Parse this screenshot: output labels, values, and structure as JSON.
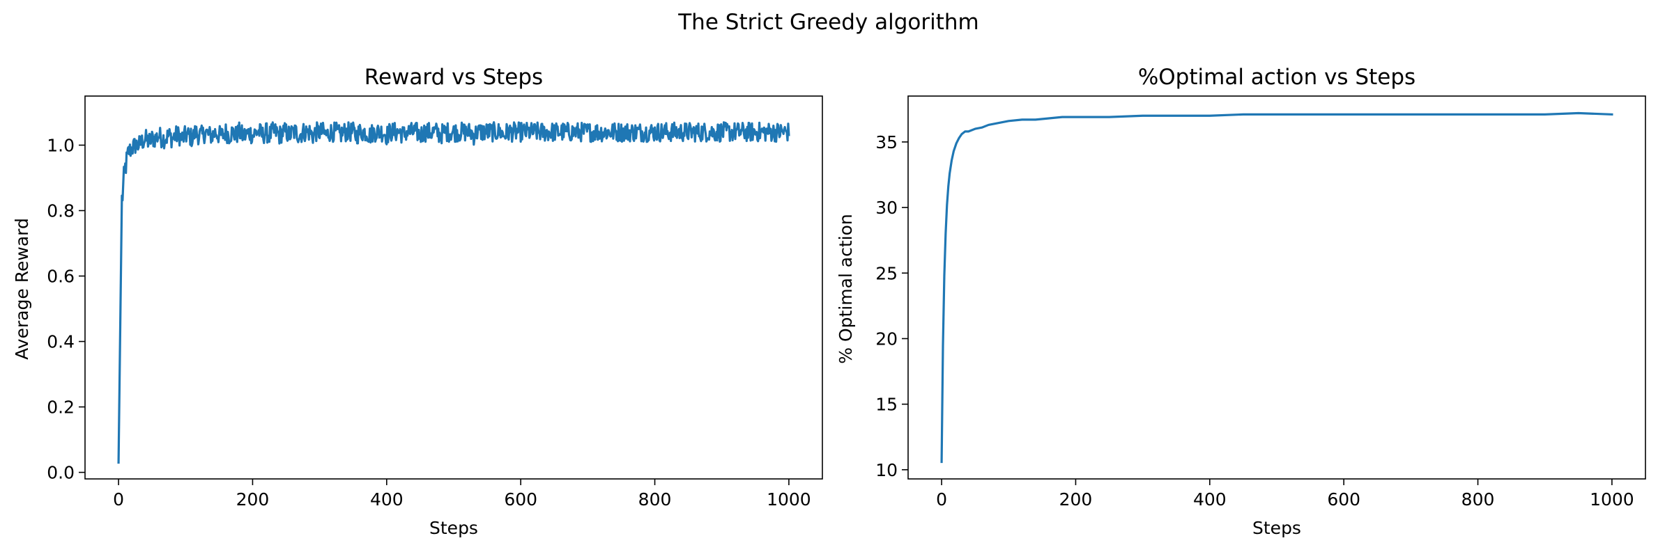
{
  "figure": {
    "suptitle": "The Strict Greedy algorithm"
  },
  "chart_data": [
    {
      "type": "line",
      "title": "Reward vs Steps",
      "xlabel": "Steps",
      "ylabel": "Average Reward",
      "xlim": [
        -50,
        1050
      ],
      "ylim": [
        -0.02,
        1.15
      ],
      "xticks": [
        0,
        200,
        400,
        600,
        800,
        1000
      ],
      "xtick_labels": [
        "0",
        "200",
        "400",
        "600",
        "800",
        "1000"
      ],
      "yticks": [
        0.0,
        0.2,
        0.4,
        0.6,
        0.8,
        1.0
      ],
      "ytick_labels": [
        "0.0",
        "0.2",
        "0.4",
        "0.6",
        "0.8",
        "1.0"
      ],
      "grid": false,
      "color": "#1f77b4",
      "series": [
        {
          "x_start": 0,
          "x_step": 5,
          "values": [
            0.03,
            0.83,
            0.93,
            0.98,
            0.99,
            1.0,
            1.0,
            1.01,
            1.02,
            1.01,
            1.02,
            1.02,
            1.03,
            1.02,
            1.02,
            1.03,
            1.02,
            1.03,
            1.03,
            1.02,
            1.03,
            1.03,
            1.02,
            1.04,
            1.03,
            1.03,
            1.04,
            1.03,
            1.03,
            1.04,
            1.03,
            1.03,
            1.04,
            1.03,
            1.04,
            1.03,
            1.04,
            1.03,
            1.03,
            1.04,
            1.03,
            1.04,
            1.04,
            1.03,
            1.04,
            1.03,
            1.04,
            1.04,
            1.03,
            1.04,
            1.04,
            1.03,
            1.04,
            1.04,
            1.03,
            1.04,
            1.04,
            1.04,
            1.03,
            1.04,
            1.04,
            1.04,
            1.03,
            1.04,
            1.04,
            1.04,
            1.03,
            1.04,
            1.04,
            1.04,
            1.04,
            1.03,
            1.04,
            1.04,
            1.04,
            1.03,
            1.04,
            1.04,
            1.04,
            1.04,
            1.03,
            1.04,
            1.04,
            1.04,
            1.04,
            1.03,
            1.04,
            1.04,
            1.04,
            1.04,
            1.03,
            1.04,
            1.04,
            1.04,
            1.04,
            1.04,
            1.03,
            1.04,
            1.04,
            1.04,
            1.04,
            1.04,
            1.04,
            1.04,
            1.04,
            1.04,
            1.03,
            1.04,
            1.04,
            1.04,
            1.04,
            1.04,
            1.04,
            1.04,
            1.04,
            1.03,
            1.04,
            1.04,
            1.04,
            1.04,
            1.04,
            1.04,
            1.04,
            1.04,
            1.04,
            1.04,
            1.04,
            1.04,
            1.04,
            1.04,
            1.04,
            1.04,
            1.04,
            1.04,
            1.04,
            1.04,
            1.04,
            1.04,
            1.04,
            1.04,
            1.04,
            1.04,
            1.04,
            1.04,
            1.04,
            1.04,
            1.04,
            1.04,
            1.04,
            1.04,
            1.04,
            1.04,
            1.04,
            1.04,
            1.04,
            1.04,
            1.04,
            1.04,
            1.04,
            1.04,
            1.04,
            1.04,
            1.04,
            1.04,
            1.04,
            1.04,
            1.04,
            1.04,
            1.04,
            1.04,
            1.04,
            1.04,
            1.04,
            1.04,
            1.04,
            1.04,
            1.04,
            1.04,
            1.04,
            1.04,
            1.04,
            1.04,
            1.04,
            1.04,
            1.04,
            1.04,
            1.04,
            1.04,
            1.04,
            1.04,
            1.04,
            1.04,
            1.04,
            1.04,
            1.04,
            1.04,
            1.04,
            1.04,
            1.04,
            1.04,
            1.04
          ],
          "noise": [
            0,
            0.05,
            0.04,
            0.03,
            0.03,
            0.03,
            0.03,
            0.03,
            0.03,
            0.03,
            0.03,
            0.03,
            0.03,
            0.03,
            0.03,
            0.03,
            0.03,
            0.03,
            0.03,
            0.03,
            0.03,
            0.03,
            0.03,
            0.03,
            0.03,
            0.03,
            0.03,
            0.03,
            0.03,
            0.03,
            0.03,
            0.03,
            0.03,
            0.03,
            0.03,
            0.03,
            0.03,
            0.03,
            0.03,
            0.03,
            0.03,
            0.03,
            0.03,
            0.03,
            0.03,
            0.03,
            0.03,
            0.03,
            0.03,
            0.03,
            0.03,
            0.03,
            0.03,
            0.03,
            0.03,
            0.03,
            0.03,
            0.03,
            0.03,
            0.03,
            0.03,
            0.03,
            0.03,
            0.03,
            0.03,
            0.03,
            0.03,
            0.03,
            0.03,
            0.03,
            0.03,
            0.03,
            0.03,
            0.03,
            0.03,
            0.03,
            0.03,
            0.03,
            0.03,
            0.03,
            0.03,
            0.03,
            0.03,
            0.03,
            0.03,
            0.03,
            0.03,
            0.03,
            0.03,
            0.03,
            0.03,
            0.03,
            0.03,
            0.03,
            0.03,
            0.03,
            0.03,
            0.03,
            0.03,
            0.03,
            0.03,
            0.03,
            0.03,
            0.03,
            0.03,
            0.03,
            0.03,
            0.03,
            0.03,
            0.03,
            0.03,
            0.03,
            0.03,
            0.03,
            0.03,
            0.03,
            0.03,
            0.03,
            0.03,
            0.03,
            0.03,
            0.03,
            0.03,
            0.03,
            0.03,
            0.03,
            0.03,
            0.03,
            0.03,
            0.03,
            0.03,
            0.03,
            0.03,
            0.03,
            0.03,
            0.03,
            0.03,
            0.03,
            0.03,
            0.03,
            0.03,
            0.03,
            0.03,
            0.03,
            0.03,
            0.03,
            0.03,
            0.03,
            0.03,
            0.03,
            0.03,
            0.03,
            0.03,
            0.03,
            0.03,
            0.03,
            0.03,
            0.03,
            0.03,
            0.03,
            0.03,
            0.03,
            0.03,
            0.03,
            0.03,
            0.03,
            0.03,
            0.03,
            0.03,
            0.03,
            0.03,
            0.03,
            0.03,
            0.03,
            0.03,
            0.03,
            0.03,
            0.03,
            0.03,
            0.03,
            0.03,
            0.03,
            0.03,
            0.03,
            0.03,
            0.03,
            0.03,
            0.03,
            0.03,
            0.03,
            0.03,
            0.03,
            0.03,
            0.03,
            0.03,
            0.03,
            0.03,
            0.03,
            0.03,
            0.03,
            0.03,
            0.03,
            0.03
          ]
        }
      ]
    },
    {
      "type": "line",
      "title": "%Optimal action vs Steps",
      "xlabel": "Steps",
      "ylabel": "% Optimal action",
      "xlim": [
        -50,
        1050
      ],
      "ylim": [
        9.3,
        38.5
      ],
      "xticks": [
        0,
        200,
        400,
        600,
        800,
        1000
      ],
      "xtick_labels": [
        "0",
        "200",
        "400",
        "600",
        "800",
        "1000"
      ],
      "yticks": [
        10,
        15,
        20,
        25,
        30,
        35
      ],
      "ytick_labels": [
        "10",
        "15",
        "20",
        "25",
        "30",
        "35"
      ],
      "grid": false,
      "color": "#1f77b4",
      "series": [
        {
          "x": [
            0,
            2,
            4,
            6,
            8,
            10,
            12,
            15,
            18,
            22,
            26,
            30,
            35,
            40,
            45,
            50,
            60,
            70,
            80,
            90,
            100,
            120,
            140,
            160,
            180,
            200,
            250,
            300,
            350,
            400,
            450,
            500,
            550,
            600,
            650,
            700,
            750,
            800,
            850,
            900,
            950,
            1000
          ],
          "y": [
            10.6,
            19.5,
            24.8,
            28.0,
            30.2,
            31.6,
            32.6,
            33.6,
            34.3,
            34.9,
            35.3,
            35.6,
            35.8,
            35.8,
            35.9,
            36.0,
            36.1,
            36.3,
            36.4,
            36.5,
            36.6,
            36.7,
            36.7,
            36.8,
            36.9,
            36.9,
            36.9,
            37.0,
            37.0,
            37.0,
            37.1,
            37.1,
            37.1,
            37.1,
            37.1,
            37.1,
            37.1,
            37.1,
            37.1,
            37.1,
            37.2,
            37.1
          ]
        }
      ]
    }
  ]
}
